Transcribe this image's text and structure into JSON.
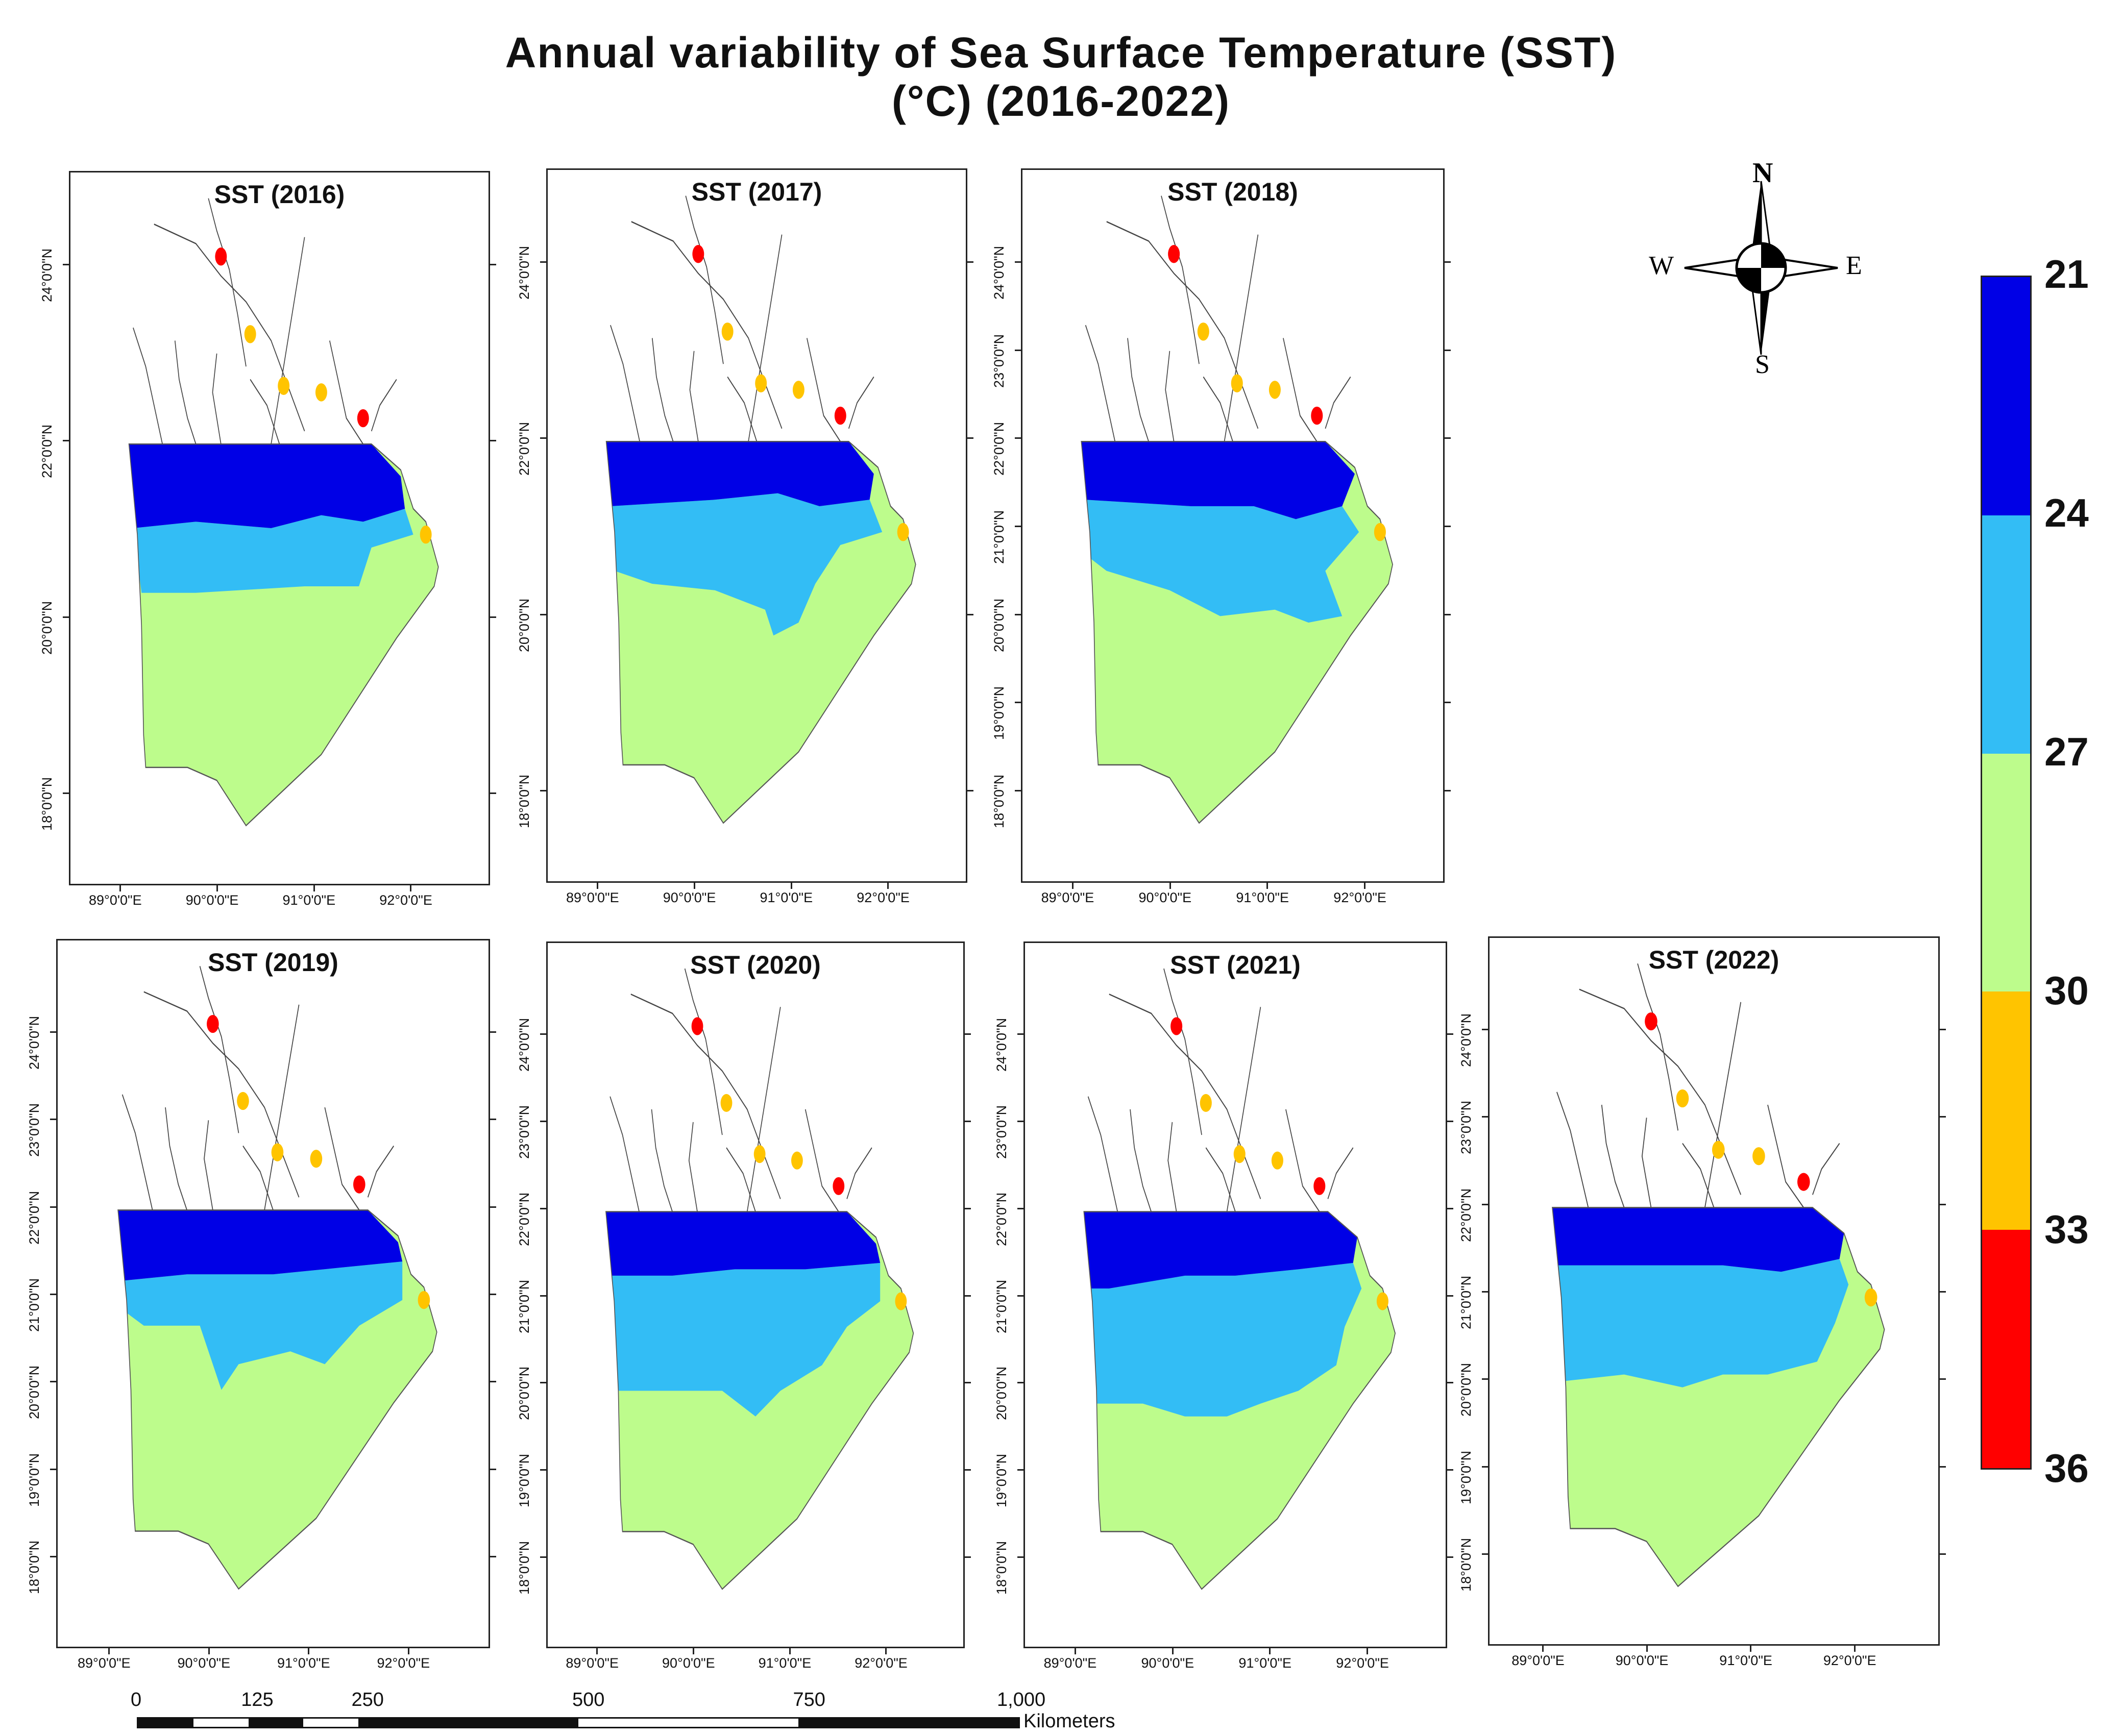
{
  "title": {
    "line1": "Annual variability of Sea Surface Temperature (SST)",
    "line2": "(°C) (2016-2022)"
  },
  "lat_ticks": [
    "18°0'0\"N",
    "19°0'0\"N",
    "20°0'0\"N",
    "21°0'0\"N",
    "22°0'0\"N",
    "23°0'0\"N",
    "24°0'0\"N"
  ],
  "lon_ticks": [
    "89°0'0\"E",
    "90°0'0\"E",
    "91°0'0\"E",
    "92°0'0\"E"
  ],
  "panels": [
    {
      "title": "SST (2016)",
      "year": 2016,
      "lat_labels": [
        "18°0'0\"N",
        "20°0'0\"N",
        "22°0'0\"N",
        "24°0'0\"N"
      ],
      "pattern": "a"
    },
    {
      "title": "SST (2017)",
      "year": 2017,
      "lat_labels": [
        "18°0'0\"N",
        "20°0'0\"N",
        "22°0'0\"N",
        "24°0'0\"N"
      ],
      "pattern": "b"
    },
    {
      "title": "SST (2018)",
      "year": 2018,
      "lat_labels": [
        "18°0'0\"N",
        "19°0'0\"N",
        "20°0'0\"N",
        "21°0'0\"N",
        "22°0'0\"N",
        "23°0'0\"N",
        "24°0'0\"N"
      ],
      "pattern": "c"
    },
    {
      "title": "SST (2019)",
      "year": 2019,
      "lat_labels": [
        "18°0'0\"N",
        "19°0'0\"N",
        "20°0'0\"N",
        "21°0'0\"N",
        "22°0'0\"N",
        "23°0'0\"N",
        "24°0'0\"N"
      ],
      "pattern": "d"
    },
    {
      "title": "SST (2020)",
      "year": 2020,
      "lat_labels": [
        "18°0'0\"N",
        "19°0'0\"N",
        "20°0'0\"N",
        "21°0'0\"N",
        "22°0'0\"N",
        "23°0'0\"N",
        "24°0'0\"N"
      ],
      "pattern": "e"
    },
    {
      "title": "SST (2021)",
      "year": 2021,
      "lat_labels": [
        "18°0'0\"N",
        "19°0'0\"N",
        "20°0'0\"N",
        "21°0'0\"N",
        "22°0'0\"N",
        "23°0'0\"N",
        "24°0'0\"N"
      ],
      "pattern": "f"
    },
    {
      "title": "SST (2022)",
      "year": 2022,
      "lat_labels": [
        "18°0'0\"N",
        "19°0'0\"N",
        "20°0'0\"N",
        "21°0'0\"N",
        "22°0'0\"N",
        "23°0'0\"N",
        "24°0'0\"N"
      ],
      "pattern": "g"
    }
  ],
  "legend": {
    "labels": [
      "21",
      "24",
      "27",
      "30",
      "33",
      "36"
    ],
    "classes": [
      {
        "range": "21-24",
        "color": "#0000e6"
      },
      {
        "range": "24-27",
        "color": "#33bdf5"
      },
      {
        "range": "27-30",
        "color": "#bdfc8c"
      },
      {
        "range": "30-33",
        "color": "#ffc400"
      },
      {
        "range": "33-36",
        "color": "#ff0000"
      }
    ]
  },
  "compass": {
    "n": "N",
    "s": "S",
    "e": "E",
    "w": "W"
  },
  "scale": {
    "labels": [
      "0",
      "125",
      "250",
      "500",
      "750",
      "1,000"
    ],
    "unit": "Kilometers"
  },
  "colors": {
    "deep": "#0000e6",
    "mid": "#33bdf5",
    "warm": "#bdfc8c",
    "hot": "#ffc400",
    "hottest": "#ff0000"
  }
}
